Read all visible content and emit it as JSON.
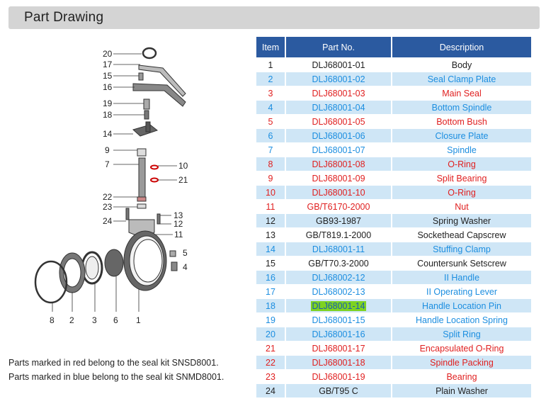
{
  "title": "Part Drawing",
  "columns": [
    "Item",
    "Part No.",
    "Description"
  ],
  "rows": [
    {
      "item": "1",
      "part": "DLJ68001-01",
      "desc": "Body",
      "color": "black"
    },
    {
      "item": "2",
      "part": "DLJ68001-02",
      "desc": "Seal Clamp Plate",
      "color": "blue"
    },
    {
      "item": "3",
      "part": "DLJ68001-03",
      "desc": "Main Seal",
      "color": "red"
    },
    {
      "item": "4",
      "part": "DLJ68001-04",
      "desc": "Bottom Spindle",
      "color": "blue"
    },
    {
      "item": "5",
      "part": "DLJ68001-05",
      "desc": "Bottom Bush",
      "color": "red"
    },
    {
      "item": "6",
      "part": "DLJ68001-06",
      "desc": "Closure Plate",
      "color": "blue"
    },
    {
      "item": "7",
      "part": "DLJ68001-07",
      "desc": "Spindle",
      "color": "blue"
    },
    {
      "item": "8",
      "part": "DLJ68001-08",
      "desc": "O-Ring",
      "color": "red"
    },
    {
      "item": "9",
      "part": "DLJ68001-09",
      "desc": "Split Bearing",
      "color": "red"
    },
    {
      "item": "10",
      "part": "DLJ68001-10",
      "desc": "O-Ring",
      "color": "red"
    },
    {
      "item": "11",
      "part": "GB/T6170-2000",
      "desc": "Nut",
      "color": "red"
    },
    {
      "item": "12",
      "part": "GB93-1987",
      "desc": "Spring Washer",
      "color": "black"
    },
    {
      "item": "13",
      "part": "GB/T819.1-2000",
      "desc": "Sockethead Capscrew",
      "color": "black"
    },
    {
      "item": "14",
      "part": "DLJ68001-11",
      "desc": "Stuffing Clamp",
      "color": "blue"
    },
    {
      "item": "15",
      "part": "GB/T70.3-2000",
      "desc": "Countersunk Setscrew",
      "color": "black"
    },
    {
      "item": "16",
      "part": "DLJ68002-12",
      "desc": "II Handle",
      "color": "blue"
    },
    {
      "item": "17",
      "part": "DLJ68002-13",
      "desc": "II Operating Lever",
      "color": "blue"
    },
    {
      "item": "18",
      "part": "DLJ68001-14",
      "desc": "Handle Location Pin",
      "color": "blue",
      "highlight": true
    },
    {
      "item": "19",
      "part": "DLJ68001-15",
      "desc": "Handle Location Spring",
      "color": "blue"
    },
    {
      "item": "20",
      "part": "DLJ68001-16",
      "desc": "Split Ring",
      "color": "blue"
    },
    {
      "item": "21",
      "part": "DLJ68001-17",
      "desc": "Encapsulated O-Ring",
      "color": "red"
    },
    {
      "item": "22",
      "part": "DLJ68001-18",
      "desc": "Spindle Packing",
      "color": "red"
    },
    {
      "item": "23",
      "part": "DLJ68001-19",
      "desc": "Bearing",
      "color": "red"
    },
    {
      "item": "24",
      "part": "GB/T95 C",
      "desc": "Plain Washer",
      "color": "black"
    }
  ],
  "notes": [
    "Parts marked in red  belong to the seal kit SNSD8001.",
    "Parts marked in blue  belong to the seal kit SNMD8001."
  ],
  "callouts": {
    "left": [
      "20",
      "17",
      "15",
      "16",
      "19",
      "18",
      "14",
      "9",
      "7",
      "22",
      "23",
      "24"
    ],
    "right": [
      "10",
      "21",
      "13",
      "12",
      "11",
      "5",
      "4"
    ],
    "bottom": [
      "8",
      "2",
      "3",
      "6",
      "1"
    ]
  },
  "colors": {
    "header_bg": "#2b5aa0",
    "row_alt": "#cfe6f6",
    "red": "#e02020",
    "blue": "#1c8ee0",
    "highlight": "#7ed321"
  }
}
